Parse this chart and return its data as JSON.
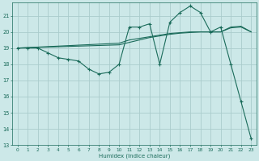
{
  "xlabel": "Humidex (Indice chaleur)",
  "xlim": [
    -0.5,
    23.5
  ],
  "ylim": [
    13.0,
    21.8
  ],
  "yticks": [
    13,
    14,
    15,
    16,
    17,
    18,
    19,
    20,
    21
  ],
  "xticks": [
    0,
    1,
    2,
    3,
    4,
    5,
    6,
    7,
    8,
    9,
    10,
    11,
    12,
    13,
    14,
    15,
    16,
    17,
    18,
    19,
    20,
    21,
    22,
    23
  ],
  "bg_color": "#cce8e8",
  "grid_color": "#aacccc",
  "line_color": "#1a6b5a",
  "line1_x": [
    0,
    1,
    2,
    3,
    4,
    5,
    6,
    7,
    8,
    9,
    10,
    11,
    12,
    13,
    14,
    15,
    16,
    17,
    18,
    19,
    20,
    21,
    22,
    23
  ],
  "line1_y": [
    19.0,
    19.0,
    19.0,
    18.7,
    18.4,
    18.3,
    18.2,
    17.7,
    17.4,
    17.5,
    18.0,
    20.3,
    20.3,
    20.5,
    18.0,
    20.6,
    21.2,
    21.6,
    21.2,
    20.0,
    20.3,
    18.0,
    15.7,
    13.4
  ],
  "line2_x": [
    0,
    10,
    11,
    12,
    13,
    14,
    15,
    16,
    17,
    18,
    19,
    20,
    21,
    22,
    23
  ],
  "line2_y": [
    19.0,
    19.3,
    19.5,
    19.6,
    19.7,
    19.8,
    19.9,
    19.95,
    20.0,
    20.0,
    20.0,
    20.0,
    20.3,
    20.35,
    20.0
  ],
  "line3_x": [
    0,
    10,
    11,
    12,
    13,
    14,
    15,
    16,
    17,
    18,
    19,
    20,
    21,
    22,
    23
  ],
  "line3_y": [
    19.0,
    19.2,
    19.35,
    19.5,
    19.65,
    19.75,
    19.85,
    19.92,
    19.96,
    20.0,
    20.0,
    20.0,
    20.25,
    20.3,
    20.0
  ]
}
